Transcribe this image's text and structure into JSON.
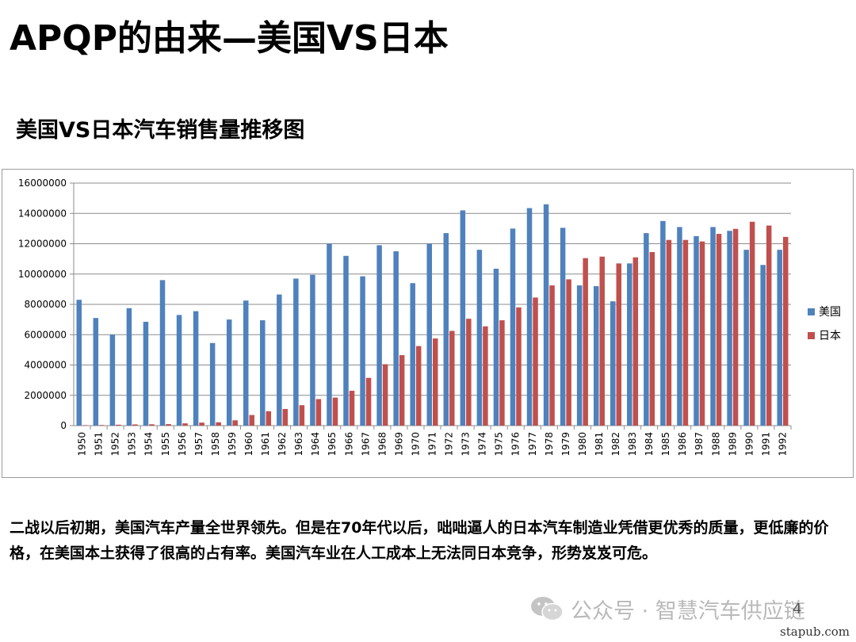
{
  "page_title": "APQP的由来—美国VS日本",
  "chart_title": "美国VS日本汽车销售量推移图",
  "body_text": "二战以后初期，美国汽车产量全世界领先。但是在70年代以后，咄咄逼人的日本汽车制造业凭借更优秀的质量，更低廉的价格，在美国本土获得了很高的占有率。美国汽车业在人工成本上无法同日本竞争，形势岌岌可危。",
  "footer": {
    "brand": "公众号 · 智慧汽车供应链",
    "page_number": "4",
    "url": "stapub.com"
  },
  "chart_data": {
    "type": "bar",
    "title": "",
    "xlabel": "",
    "ylabel": "",
    "ylim": [
      0,
      16000000
    ],
    "yticks": [
      "0",
      "2000000",
      "4000000",
      "6000000",
      "8000000",
      "10000000",
      "12000000",
      "14000000",
      "16000000"
    ],
    "grid": true,
    "legend_position": "right",
    "categories": [
      "1950",
      "1951",
      "1952",
      "1953",
      "1954",
      "1955",
      "1956",
      "1957",
      "1958",
      "1959",
      "1960",
      "1961",
      "1962",
      "1963",
      "1964",
      "1965",
      "1966",
      "1967",
      "1968",
      "1969",
      "1970",
      "1971",
      "1972",
      "1973",
      "1974",
      "1975",
      "1976",
      "1977",
      "1978",
      "1979",
      "1980",
      "1981",
      "1982",
      "1983",
      "1984",
      "1985",
      "1986",
      "1987",
      "1988",
      "1989",
      "1990",
      "1991",
      "1992"
    ],
    "series": [
      {
        "name": "美国",
        "color": "#4f81bd",
        "values": [
          8300000,
          7100000,
          6000000,
          7750000,
          6850000,
          9600000,
          7300000,
          7550000,
          5450000,
          7000000,
          8250000,
          6950000,
          8650000,
          9700000,
          9950000,
          12000000,
          11200000,
          9850000,
          11900000,
          11500000,
          9400000,
          12000000,
          12700000,
          14200000,
          11600000,
          10350000,
          13000000,
          14350000,
          14600000,
          13050000,
          9250000,
          9200000,
          8200000,
          10700000,
          12700000,
          13500000,
          13100000,
          12500000,
          13100000,
          12850000,
          11600000,
          10600000,
          11600000
        ]
      },
      {
        "name": "日本",
        "color": "#c0504d",
        "values": [
          30000,
          40000,
          60000,
          80000,
          90000,
          100000,
          150000,
          200000,
          220000,
          350000,
          700000,
          950000,
          1100000,
          1350000,
          1750000,
          1850000,
          2300000,
          3150000,
          4050000,
          4650000,
          5250000,
          5750000,
          6250000,
          7050000,
          6550000,
          6950000,
          7800000,
          8450000,
          9250000,
          9650000,
          11050000,
          11150000,
          10700000,
          11100000,
          11450000,
          12250000,
          12250000,
          12150000,
          12650000,
          12980000,
          13450000,
          13200000,
          12450000
        ]
      }
    ]
  }
}
